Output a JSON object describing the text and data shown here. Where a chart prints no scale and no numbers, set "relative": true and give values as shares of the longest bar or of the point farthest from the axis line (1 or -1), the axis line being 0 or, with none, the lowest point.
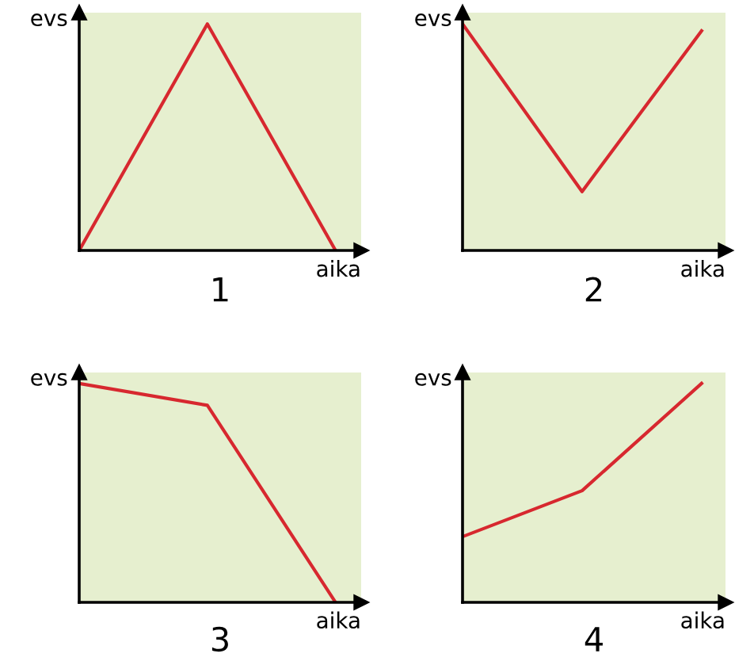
{
  "chart_data": [
    {
      "type": "line",
      "title": "1",
      "xlabel": "aika",
      "ylabel": "evs",
      "relative": true,
      "categories": [
        null,
        null,
        null
      ],
      "series": [
        {
          "color": "#d7282f",
          "values": [
            0,
            1,
            0
          ]
        }
      ]
    },
    {
      "type": "line",
      "title": "2",
      "xlabel": "aika",
      "ylabel": "evs",
      "relative": true,
      "categories": [
        null,
        null,
        null
      ],
      "series": [
        {
          "color": "#d7282f",
          "values": [
            1,
            0.26,
            0.97
          ]
        }
      ]
    },
    {
      "type": "line",
      "title": "3",
      "xlabel": "aika",
      "ylabel": "evs",
      "relative": true,
      "categories": [
        null,
        null,
        null
      ],
      "series": [
        {
          "color": "#d7282f",
          "values": [
            1,
            0.9,
            0
          ]
        }
      ]
    },
    {
      "type": "line",
      "title": "4",
      "xlabel": "aika",
      "ylabel": "evs",
      "relative": true,
      "categories": [
        null,
        null,
        null
      ],
      "series": [
        {
          "color": "#d7282f",
          "values": [
            0.3,
            0.51,
            1
          ]
        }
      ]
    }
  ]
}
